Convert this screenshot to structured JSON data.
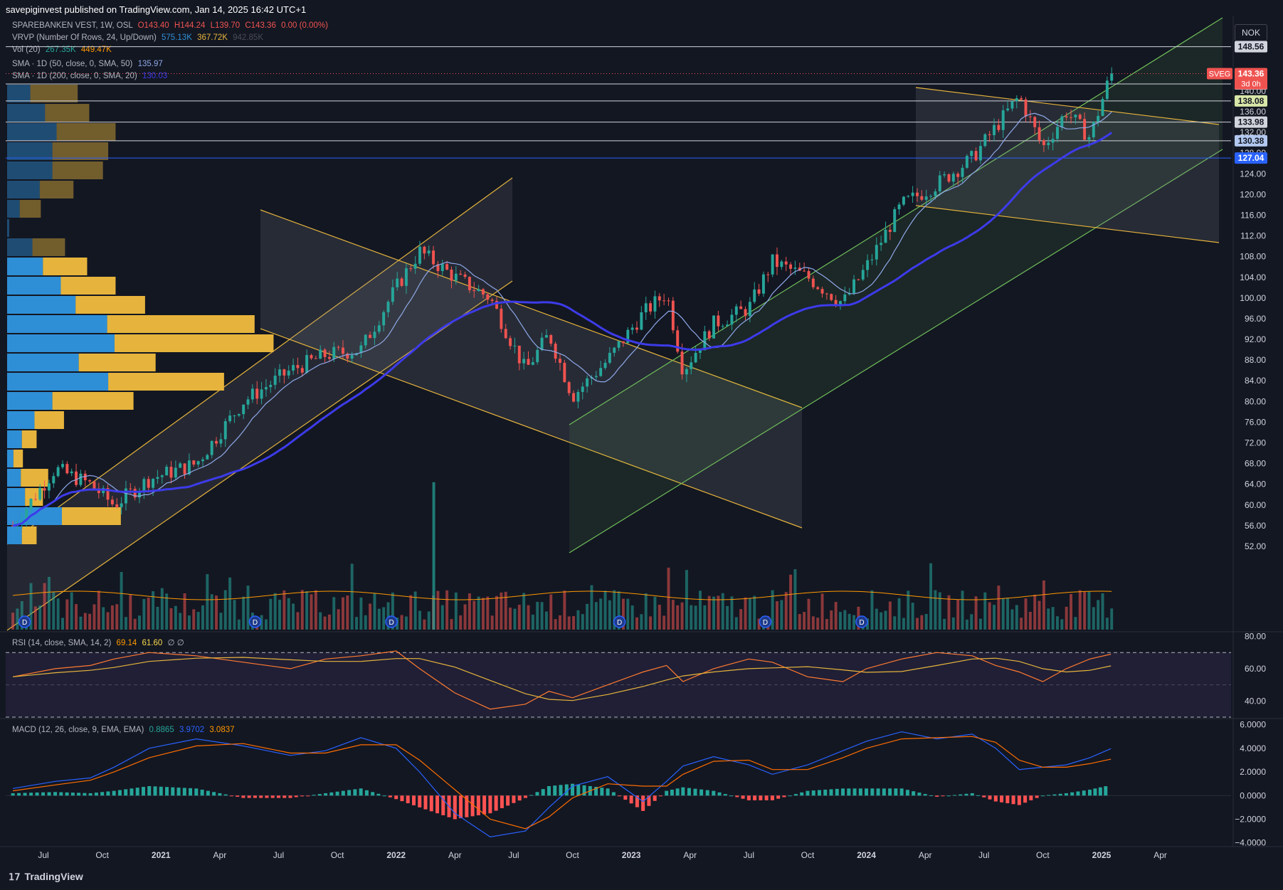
{
  "header": {
    "published": "savepiginvest published on TradingView.com, Jan 14, 2025 16:42 UTC+1"
  },
  "legend": {
    "symbol": "SPAREBANKEN VEST, 1W, OSL",
    "o": "O143.40",
    "h": "H144.24",
    "l": "L139.70",
    "c": "C143.36",
    "chg": "0.00 (0.00%)",
    "vrvp": "VRVP (Number Of Rows, 24, Up/Down)",
    "vrvp_up": "575.13K",
    "vrvp_down": "367.72K",
    "vrvp_total": "942.85K",
    "vol": "Vol (20)",
    "vol_v1": "267.35K",
    "vol_v2": "449.47K",
    "sma50": "SMA · 1D (50, close, 0, SMA, 50)",
    "sma50_v": "135.97",
    "sma200": "SMA · 1D (200, close, 0, SMA, 20)",
    "sma200_v": "130.03",
    "rsi": "RSI (14, close, SMA, 14, 2)",
    "rsi_v1": "69.14",
    "rsi_v2": "61.60",
    "rsi_v3": "∅ ∅",
    "macd": "MACD (12, 26, close, 9, EMA, EMA)",
    "macd_v1": "0.8865",
    "macd_v2": "3.9702",
    "macd_v3": "3.0837"
  },
  "currency": "NOK",
  "footer": {
    "brand": "TradingView"
  },
  "colors": {
    "up": "#26a69a",
    "down": "#ef5350",
    "sma200": "#3d3bea",
    "sma50": "#8ea8e8",
    "channel": "#e6b43c",
    "green_channel": "#6fbf5a",
    "bg": "#131722"
  },
  "chart_data": [
    {
      "type": "candlestick",
      "title": "SPAREBANKEN VEST, 1W, OSL",
      "ylim": [
        48,
        152
      ],
      "y_ticks": [
        52,
        56,
        60,
        64,
        68,
        72,
        76,
        80,
        84,
        88,
        92,
        96,
        100,
        104,
        108,
        112,
        116,
        120,
        124,
        128,
        132,
        136,
        140
      ],
      "x_ticks": [
        "Jul",
        "Oct",
        "2021",
        "Apr",
        "Jul",
        "Oct",
        "2022",
        "Apr",
        "Jul",
        "Oct",
        "2023",
        "Apr",
        "Jul",
        "Oct",
        "2024",
        "Apr",
        "Jul",
        "Oct",
        "2025",
        "Apr"
      ],
      "price_path": [
        [
          2020.37,
          56
        ],
        [
          2020.55,
          67
        ],
        [
          2020.7,
          64
        ],
        [
          2020.8,
          60
        ],
        [
          2020.95,
          65
        ],
        [
          2021.15,
          68
        ],
        [
          2021.35,
          80
        ],
        [
          2021.55,
          86
        ],
        [
          2021.7,
          89
        ],
        [
          2021.85,
          90
        ],
        [
          2022.0,
          102
        ],
        [
          2022.1,
          109
        ],
        [
          2022.25,
          104
        ],
        [
          2022.4,
          100
        ],
        [
          2022.55,
          86
        ],
        [
          2022.65,
          93
        ],
        [
          2022.75,
          81
        ],
        [
          2022.9,
          88
        ],
        [
          2023.05,
          97
        ],
        [
          2023.15,
          101
        ],
        [
          2023.22,
          86
        ],
        [
          2023.35,
          95
        ],
        [
          2023.5,
          98
        ],
        [
          2023.6,
          107
        ],
        [
          2023.75,
          104
        ],
        [
          2023.9,
          99
        ],
        [
          2024.0,
          106
        ],
        [
          2024.15,
          118
        ],
        [
          2024.3,
          122
        ],
        [
          2024.45,
          127
        ],
        [
          2024.55,
          133
        ],
        [
          2024.65,
          139
        ],
        [
          2024.75,
          129
        ],
        [
          2024.85,
          136
        ],
        [
          2024.95,
          131
        ],
        [
          2025.04,
          143.36
        ]
      ],
      "last": 143.36,
      "levels": [
        {
          "value": 148.56,
          "label": "148.56"
        },
        {
          "value": 141.36,
          "label": "141.36"
        },
        {
          "value": 138.08,
          "label": "138.08"
        },
        {
          "value": 133.98,
          "label": "133.98"
        },
        {
          "value": 130.38,
          "label": "130.38"
        },
        {
          "value": 127.04,
          "label": "127.04"
        }
      ],
      "last_label": "SVEG",
      "last_value": "143.36",
      "countdown": "3d 0h",
      "dividends": [
        2020.42,
        2021.4,
        2021.98,
        2022.95,
        2023.57,
        2023.98
      ],
      "dividend_mark": "D",
      "volume_spike": [
        2022.16,
        74
      ]
    },
    {
      "type": "line",
      "title": "RSI (14, close, SMA, 14, 2)",
      "ylim": [
        30,
        82
      ],
      "y_ticks": [
        "80.00",
        "60.00",
        "40.00"
      ],
      "bands": [
        70,
        50,
        30
      ],
      "series": [
        {
          "values": [
            55,
            60,
            62,
            66,
            70,
            68,
            64,
            60,
            66,
            68,
            71,
            60,
            45,
            35,
            38,
            46,
            42,
            50,
            58,
            62,
            52,
            60,
            66,
            64,
            55,
            52,
            60,
            66,
            70,
            68,
            62,
            58,
            52,
            60,
            66,
            69
          ]
        }
      ]
    },
    {
      "type": "line",
      "title": "MACD (12, 26, close, 9, EMA, EMA)",
      "ylim": [
        -4.2,
        6.4
      ],
      "y_ticks": [
        "6.0000",
        "4.0000",
        "2.0000",
        "0.0000",
        "−2.0000",
        "−4.0000"
      ],
      "series": [
        {
          "values": [
            0.6,
            1.2,
            1.5,
            2.4,
            4.0,
            4.8,
            4.2,
            3.4,
            3.8,
            4.9,
            4.0,
            2.0,
            -1.5,
            -3.5,
            -3.0,
            -1.0,
            0.8,
            1.6,
            -0.5,
            1.2,
            2.5,
            3.3,
            2.6,
            1.8,
            2.6,
            3.8,
            4.6,
            5.4,
            4.8,
            5.2,
            4.0,
            2.2,
            2.4,
            2.6,
            3.2,
            3.97
          ]
        },
        {
          "values": [
            0.4,
            0.9,
            1.3,
            2.0,
            3.2,
            4.2,
            4.4,
            3.6,
            3.6,
            4.3,
            4.3,
            3.0,
            0.5,
            -2.0,
            -2.8,
            -1.8,
            -0.2,
            1.0,
            0.8,
            0.8,
            1.8,
            2.9,
            3.0,
            2.2,
            2.2,
            3.2,
            4.0,
            4.8,
            4.9,
            5.0,
            4.5,
            3.0,
            2.4,
            2.4,
            2.7,
            3.08
          ]
        }
      ]
    }
  ]
}
